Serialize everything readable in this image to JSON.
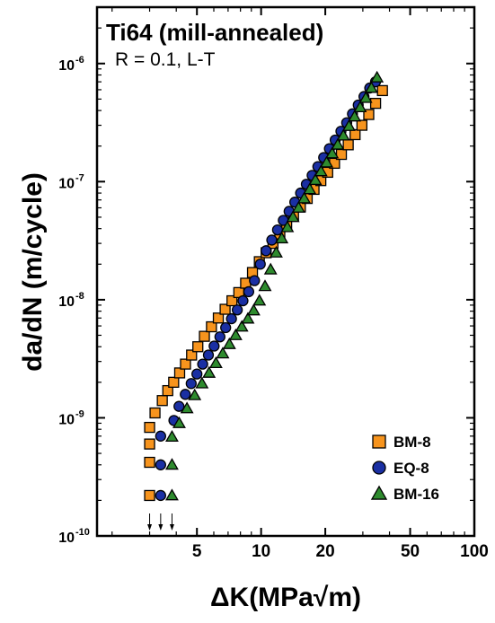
{
  "chart_data": {
    "type": "scatter",
    "title": "Ti64 (mill-annealed)",
    "subtitle": "R = 0.1, L-T",
    "xlabel": "ΔK(MPa√m)",
    "ylabel": "da/dN (m/cycle)",
    "x_scale": "log",
    "y_scale": "log",
    "xlim": [
      1.7,
      100
    ],
    "ylim": [
      1e-10,
      3e-06
    ],
    "x_ticks": [
      {
        "value": 5,
        "label": "5"
      },
      {
        "value": 10,
        "label": "10"
      },
      {
        "value": 20,
        "label": "20"
      },
      {
        "value": 50,
        "label": "50"
      },
      {
        "value": 100,
        "label": "100"
      }
    ],
    "y_ticks": [
      {
        "value": 1e-10,
        "base": "10",
        "exp": "-10"
      },
      {
        "value": 1e-09,
        "base": "10",
        "exp": "-9"
      },
      {
        "value": 1e-08,
        "base": "10",
        "exp": "-8"
      },
      {
        "value": 1e-07,
        "base": "10",
        "exp": "-7"
      },
      {
        "value": 1e-06,
        "base": "10",
        "exp": "-6"
      }
    ],
    "legend_position": "bottom-right",
    "series": [
      {
        "name": "BM-8",
        "marker": "square",
        "color": "#F7941D",
        "points": [
          [
            3.0,
            2.2e-10
          ],
          [
            3.0,
            4.2e-10
          ],
          [
            3.0,
            6e-10
          ],
          [
            3.0,
            8.3e-10
          ],
          [
            3.18,
            1.1e-09
          ],
          [
            3.44,
            1.4e-09
          ],
          [
            3.65,
            1.7e-09
          ],
          [
            3.89,
            2e-09
          ],
          [
            4.15,
            2.4e-09
          ],
          [
            4.42,
            2.85e-09
          ],
          [
            4.72,
            3.4e-09
          ],
          [
            5.05,
            4e-09
          ],
          [
            5.42,
            4.9e-09
          ],
          [
            5.85,
            5.9e-09
          ],
          [
            6.3,
            7e-09
          ],
          [
            6.78,
            8.3e-09
          ],
          [
            7.3,
            9.8e-09
          ],
          [
            7.86,
            1.15e-08
          ],
          [
            8.46,
            1.38e-08
          ],
          [
            9.11,
            1.7e-08
          ],
          [
            9.81,
            2.1e-08
          ],
          [
            10.56,
            2.5e-08
          ],
          [
            11.37,
            3e-08
          ],
          [
            12.24,
            3.6e-08
          ],
          [
            13.18,
            4.3e-08
          ],
          [
            14.19,
            5.1e-08
          ],
          [
            15.28,
            6.1e-08
          ],
          [
            16.45,
            7.2e-08
          ],
          [
            17.71,
            8.6e-08
          ],
          [
            19.06,
            1.02e-07
          ],
          [
            20.53,
            1.2e-07
          ],
          [
            22.1,
            1.43e-07
          ],
          [
            23.8,
            1.7e-07
          ],
          [
            25.62,
            2.05e-07
          ],
          [
            27.59,
            2.5e-07
          ],
          [
            29.7,
            3e-07
          ],
          [
            31.98,
            3.7e-07
          ],
          [
            34.43,
            4.6e-07
          ],
          [
            37.07,
            5.9e-07
          ]
        ]
      },
      {
        "name": "EQ-8",
        "marker": "circle",
        "color": "#1A2FA3",
        "points": [
          [
            3.38,
            2.2e-10
          ],
          [
            3.38,
            4e-10
          ],
          [
            3.38,
            7e-10
          ],
          [
            3.9,
            9.5e-10
          ],
          [
            4.12,
            1.25e-09
          ],
          [
            4.41,
            1.58e-09
          ],
          [
            4.7,
            1.95e-09
          ],
          [
            5.0,
            2.35e-09
          ],
          [
            5.32,
            2.85e-09
          ],
          [
            5.66,
            3.4e-09
          ],
          [
            6.02,
            4.05e-09
          ],
          [
            6.41,
            4.85e-09
          ],
          [
            6.82,
            5.8e-09
          ],
          [
            7.26,
            6.9e-09
          ],
          [
            7.73,
            8.2e-09
          ],
          [
            8.22,
            9.8e-09
          ],
          [
            8.75,
            1.17e-08
          ],
          [
            9.31,
            1.45e-08
          ],
          [
            9.91,
            2e-08
          ],
          [
            10.55,
            2.6e-08
          ],
          [
            11.22,
            3.2e-08
          ],
          [
            11.94,
            3.9e-08
          ],
          [
            12.71,
            4.7e-08
          ],
          [
            13.53,
            5.6e-08
          ],
          [
            14.39,
            6.7e-08
          ],
          [
            15.32,
            8e-08
          ],
          [
            16.3,
            9.5e-08
          ],
          [
            17.35,
            1.13e-07
          ],
          [
            18.46,
            1.34e-07
          ],
          [
            19.65,
            1.6e-07
          ],
          [
            20.91,
            1.9e-07
          ],
          [
            22.25,
            2.25e-07
          ],
          [
            23.68,
            2.67e-07
          ],
          [
            25.2,
            3.15e-07
          ],
          [
            26.82,
            3.75e-07
          ],
          [
            28.54,
            4.45e-07
          ],
          [
            30.37,
            5.25e-07
          ],
          [
            32.32,
            6.2e-07
          ],
          [
            34.39,
            7e-07
          ]
        ]
      },
      {
        "name": "BM-16",
        "marker": "triangle",
        "color": "#2E8B2E",
        "points": [
          [
            3.82,
            2.2e-10
          ],
          [
            3.82,
            4e-10
          ],
          [
            3.82,
            6.9e-10
          ],
          [
            4.13,
            9e-10
          ],
          [
            4.49,
            1.2e-09
          ],
          [
            4.88,
            1.55e-09
          ],
          [
            5.28,
            1.95e-09
          ],
          [
            5.7,
            2.4e-09
          ],
          [
            6.14,
            2.9e-09
          ],
          [
            6.61,
            3.5e-09
          ],
          [
            7.1,
            4.2e-09
          ],
          [
            7.6,
            5e-09
          ],
          [
            8.12,
            5.9e-09
          ],
          [
            8.67,
            6.9e-09
          ],
          [
            9.23,
            8.1e-09
          ],
          [
            9.82,
            9.8e-09
          ],
          [
            10.43,
            1.3e-08
          ],
          [
            11.08,
            1.8e-08
          ],
          [
            11.77,
            2.5e-08
          ],
          [
            12.5,
            3.3e-08
          ],
          [
            13.28,
            4.1e-08
          ],
          [
            14.11,
            5e-08
          ],
          [
            14.99,
            6e-08
          ],
          [
            15.92,
            7.2e-08
          ],
          [
            16.91,
            8.6e-08
          ],
          [
            17.97,
            1.03e-07
          ],
          [
            19.09,
            1.22e-07
          ],
          [
            20.28,
            1.45e-07
          ],
          [
            21.54,
            1.73e-07
          ],
          [
            22.88,
            2.05e-07
          ],
          [
            24.31,
            2.45e-07
          ],
          [
            25.83,
            2.95e-07
          ],
          [
            27.44,
            3.55e-07
          ],
          [
            29.15,
            4.25e-07
          ],
          [
            30.97,
            5.1e-07
          ],
          [
            32.91,
            6.2e-07
          ],
          [
            34.97,
            7.6e-07
          ]
        ]
      }
    ],
    "annotations": {
      "threshold_arrows_x": [
        3.0,
        3.38,
        3.82
      ]
    }
  }
}
